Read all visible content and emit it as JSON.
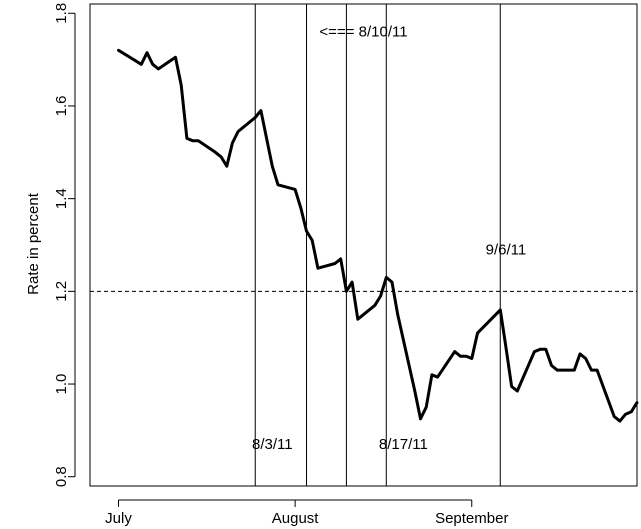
{
  "chart_data": {
    "type": "line",
    "title": "",
    "xlabel": "",
    "ylabel": "Rate in percent",
    "ylim": [
      0.78,
      1.82
    ],
    "xlim": [
      "2011-06-26",
      "2011-09-30"
    ],
    "grid": false,
    "legend": "none",
    "yticks": [
      0.8,
      1.0,
      1.2,
      1.4,
      1.6,
      1.8
    ],
    "ytick_labels": [
      "0.8",
      "1.0",
      "1.2",
      "1.4",
      "1.6",
      "1.8"
    ],
    "xticks": [
      {
        "date": "2011-07-01",
        "label": "July"
      },
      {
        "date": "2011-08-01",
        "label": "August"
      },
      {
        "date": "2011-09-01",
        "label": "September"
      }
    ],
    "hline": {
      "y": 1.2,
      "style": "dashed"
    },
    "vlines": [
      {
        "date": "2011-07-25"
      },
      {
        "date": "2011-08-03"
      },
      {
        "date": "2011-08-10"
      },
      {
        "date": "2011-08-17"
      },
      {
        "date": "2011-09-06"
      }
    ],
    "annotations": [
      {
        "text": "8/3/11",
        "date": "2011-07-28",
        "y": 0.86
      },
      {
        "text": "<=== 8/10/11",
        "date": "2011-08-13",
        "y": 1.75
      },
      {
        "text": "8/17/11",
        "date": "2011-08-20",
        "y": 0.86
      },
      {
        "text": "9/6/11",
        "date": "2011-09-07",
        "y": 1.28
      }
    ],
    "series": [
      {
        "color": "#000000",
        "x": [
          "2011-07-01",
          "2011-07-05",
          "2011-07-06",
          "2011-07-07",
          "2011-07-08",
          "2011-07-11",
          "2011-07-12",
          "2011-07-13",
          "2011-07-14",
          "2011-07-15",
          "2011-07-18",
          "2011-07-19",
          "2011-07-20",
          "2011-07-21",
          "2011-07-22",
          "2011-07-25",
          "2011-07-26",
          "2011-07-27",
          "2011-07-28",
          "2011-07-29",
          "2011-08-01",
          "2011-08-02",
          "2011-08-03",
          "2011-08-04",
          "2011-08-05",
          "2011-08-08",
          "2011-08-09",
          "2011-08-10",
          "2011-08-11",
          "2011-08-12",
          "2011-08-15",
          "2011-08-16",
          "2011-08-17",
          "2011-08-18",
          "2011-08-19",
          "2011-08-22",
          "2011-08-23",
          "2011-08-24",
          "2011-08-25",
          "2011-08-26",
          "2011-08-29",
          "2011-08-30",
          "2011-08-31",
          "2011-09-01",
          "2011-09-02",
          "2011-09-06",
          "2011-09-07",
          "2011-09-08",
          "2011-09-09",
          "2011-09-12",
          "2011-09-13",
          "2011-09-14",
          "2011-09-15",
          "2011-09-16",
          "2011-09-19",
          "2011-09-20",
          "2011-09-21",
          "2011-09-22",
          "2011-09-23",
          "2011-09-26",
          "2011-09-27",
          "2011-09-28",
          "2011-09-29",
          "2011-09-30"
        ],
        "y": [
          1.72,
          1.69,
          1.715,
          1.69,
          1.68,
          1.705,
          1.645,
          1.53,
          1.525,
          1.525,
          1.5,
          1.49,
          1.47,
          1.52,
          1.545,
          1.575,
          1.59,
          1.53,
          1.47,
          1.43,
          1.42,
          1.38,
          1.33,
          1.31,
          1.25,
          1.26,
          1.27,
          1.2,
          1.22,
          1.14,
          1.17,
          1.19,
          1.23,
          1.22,
          1.15,
          0.985,
          0.925,
          0.95,
          1.02,
          1.015,
          1.07,
          1.06,
          1.06,
          1.055,
          1.11,
          1.16,
          1.08,
          0.995,
          0.985,
          1.07,
          1.075,
          1.075,
          1.04,
          1.03,
          1.03,
          1.065,
          1.055,
          1.03,
          1.03,
          0.93,
          0.92,
          0.935,
          0.94,
          0.96
        ]
      }
    ]
  }
}
